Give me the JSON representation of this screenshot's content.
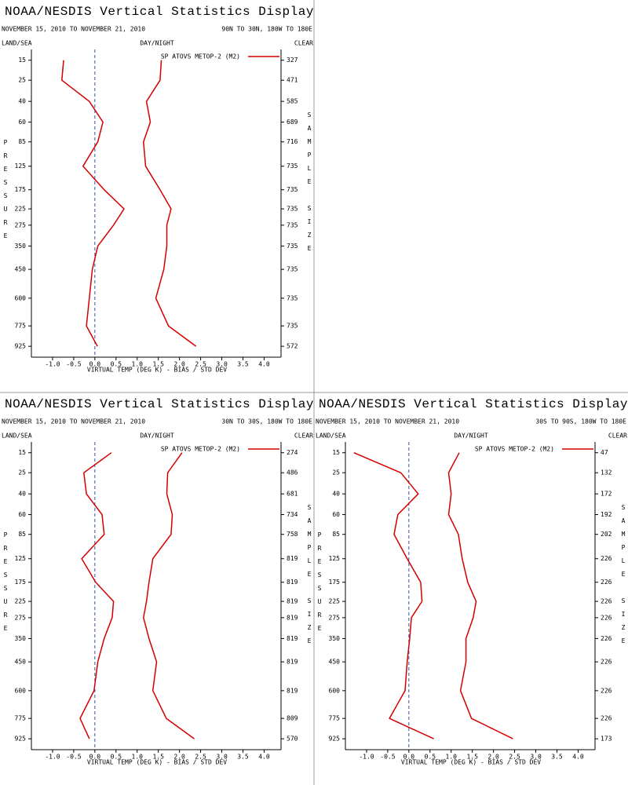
{
  "chart_data": [
    {
      "type": "line",
      "title": "NOAA/NESDIS Vertical Statistics Display",
      "subtitle": "NOVEMBER 15, 2010 TO NOVEMBER 21, 2010",
      "region": "90N TO 30N, 180W TO 180E",
      "left_label": "LAND/SEA",
      "center_label": "DAY/NIGHT",
      "right_label": "CLEAR",
      "ylabel": "PRESSURE",
      "y2label": "SAMPLE SIZE",
      "xlabel": "VIRTUAL TEMP (DEG K) - BIAS / STD DEV",
      "y": [
        15,
        25,
        40,
        60,
        85,
        125,
        175,
        225,
        275,
        350,
        450,
        600,
        775,
        925
      ],
      "ylim": [
        10,
        1000
      ],
      "xlim": [
        -1.5,
        4.4
      ],
      "xticks": [
        {
          "value": -1,
          "label": "-1.0"
        },
        {
          "value": -0.5,
          "label": "-0.5"
        },
        {
          "value": 0,
          "label": "0.0"
        },
        {
          "value": 0.5,
          "label": "0.5"
        },
        {
          "value": 1,
          "label": "1.0"
        },
        {
          "value": 1.5,
          "label": "1.5"
        },
        {
          "value": 2,
          "label": "2.0"
        },
        {
          "value": 2.5,
          "label": "2.5"
        },
        {
          "value": 3,
          "label": "3.0"
        },
        {
          "value": 3.5,
          "label": "3.5"
        },
        {
          "value": 4,
          "label": "4.0"
        }
      ],
      "zero_line": true,
      "legend": "upper right",
      "series": [
        {
          "name": "SP ATOVS METOP-2 (M2)",
          "color": "#d40000",
          "bias": [
            -0.74,
            -0.78,
            -0.13,
            0.19,
            0.07,
            -0.28,
            0.22,
            0.69,
            0.44,
            0.07,
            -0.06,
            -0.13,
            -0.2,
            0.06
          ],
          "std_dev": [
            1.57,
            1.54,
            1.22,
            1.31,
            1.15,
            1.2,
            1.54,
            1.8,
            1.7,
            1.7,
            1.63,
            1.44,
            1.74,
            2.39
          ]
        }
      ],
      "sample_size": [
        327,
        471,
        585,
        689,
        716,
        735,
        735,
        735,
        735,
        735,
        735,
        735,
        735,
        572
      ]
    },
    {
      "type": "line",
      "title": "NOAA/NESDIS Vertical Statistics Display",
      "subtitle": "NOVEMBER 15, 2010 TO NOVEMBER 21, 2010",
      "region": "30N TO 30S, 180W TO 180E",
      "left_label": "LAND/SEA",
      "center_label": "DAY/NIGHT",
      "right_label": "CLEAR",
      "ylabel": "PRESSURE",
      "y2label": "SAMPLE SIZE",
      "xlabel": "VIRTUAL TEMP (DEG K) - BIAS / STD DEV",
      "y": [
        15,
        25,
        40,
        60,
        85,
        125,
        175,
        225,
        275,
        350,
        450,
        600,
        775,
        925
      ],
      "ylim": [
        10,
        1000
      ],
      "xlim": [
        -1.5,
        4.4
      ],
      "xticks": [
        {
          "value": -1,
          "label": "-1.0"
        },
        {
          "value": -0.5,
          "label": "-0.5"
        },
        {
          "value": 0,
          "label": "0.0"
        },
        {
          "value": 0.5,
          "label": "0.5"
        },
        {
          "value": 1,
          "label": "1.0"
        },
        {
          "value": 1.5,
          "label": "1.5"
        },
        {
          "value": 2,
          "label": "2.0"
        },
        {
          "value": 2.5,
          "label": "2.5"
        },
        {
          "value": 3,
          "label": "3.0"
        },
        {
          "value": 3.5,
          "label": "3.5"
        },
        {
          "value": 4,
          "label": "4.0"
        }
      ],
      "zero_line": true,
      "legend": "upper right",
      "series": [
        {
          "name": "SP ATOVS METOP-2 (M2)",
          "color": "#d40000",
          "bias": [
            0.39,
            -0.26,
            -0.2,
            0.17,
            0.22,
            -0.31,
            0.02,
            0.44,
            0.41,
            0.22,
            0.07,
            -0.02,
            -0.35,
            -0.13
          ],
          "std_dev": [
            2.06,
            1.72,
            1.7,
            1.83,
            1.8,
            1.37,
            1.28,
            1.22,
            1.15,
            1.28,
            1.46,
            1.37,
            1.69,
            2.35
          ]
        }
      ],
      "sample_size": [
        274,
        486,
        681,
        734,
        758,
        819,
        819,
        819,
        819,
        819,
        819,
        819,
        809,
        570
      ]
    },
    {
      "type": "line",
      "title": "NOAA/NESDIS Vertical Statistics Display",
      "subtitle": "NOVEMBER 15, 2010 TO NOVEMBER 21, 2010",
      "region": "30S TO 90S, 180W TO 180E",
      "left_label": "LAND/SEA",
      "center_label": "DAY/NIGHT",
      "right_label": "CLEAR",
      "ylabel": "PRESSURE",
      "y2label": "SAMPLE SIZE",
      "xlabel": "VIRTUAL TEMP (DEG K) - BIAS / STD DEV",
      "y": [
        15,
        25,
        40,
        60,
        85,
        125,
        175,
        225,
        275,
        350,
        450,
        600,
        775,
        925
      ],
      "ylim": [
        10,
        1000
      ],
      "xlim": [
        -1.5,
        4.4
      ],
      "xticks": [
        {
          "value": -1,
          "label": "-1.0"
        },
        {
          "value": -0.5,
          "label": "-0.5"
        },
        {
          "value": 0,
          "label": "0.0"
        },
        {
          "value": 0.5,
          "label": "0.5"
        },
        {
          "value": 1,
          "label": "1.0"
        },
        {
          "value": 1.5,
          "label": "1.5"
        },
        {
          "value": 2,
          "label": "2.0"
        },
        {
          "value": 2.5,
          "label": "2.5"
        },
        {
          "value": 3,
          "label": "3.0"
        },
        {
          "value": 3.5,
          "label": "3.5"
        },
        {
          "value": 4,
          "label": "4.0"
        }
      ],
      "zero_line": true,
      "legend": "upper right",
      "series": [
        {
          "name": "SP ATOVS METOP-2 (M2)",
          "color": "#d40000",
          "bias": [
            -1.3,
            -0.19,
            0.22,
            -0.26,
            -0.35,
            -0.04,
            0.28,
            0.31,
            0.06,
            0.02,
            -0.04,
            -0.09,
            -0.46,
            0.59
          ],
          "std_dev": [
            1.19,
            0.94,
            1.0,
            0.94,
            1.17,
            1.26,
            1.39,
            1.59,
            1.52,
            1.35,
            1.35,
            1.22,
            1.48,
            2.46
          ]
        }
      ],
      "sample_size": [
        47,
        132,
        172,
        192,
        202,
        226,
        226,
        226,
        226,
        226,
        226,
        226,
        226,
        173
      ]
    }
  ]
}
